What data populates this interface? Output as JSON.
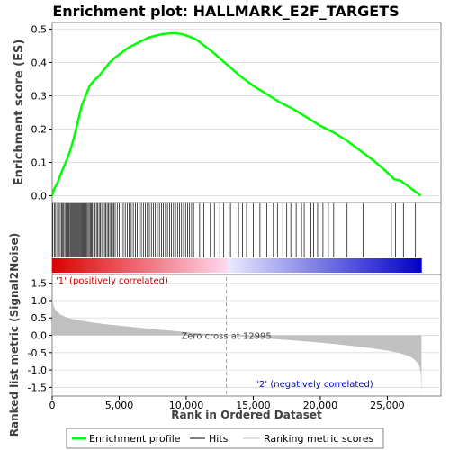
{
  "chart_data": {
    "type": "line",
    "title": "Enrichment plot: HALLMARK_E2F_TARGETS",
    "es_panel": {
      "ylabel": "Enrichment score (ES)",
      "ylim": [
        -0.02,
        0.52
      ],
      "yticks": [
        0.0,
        0.1,
        0.2,
        0.3,
        0.4,
        0.5
      ],
      "ytick_labels": [
        "0.0",
        "0.1",
        "0.2",
        "0.3",
        "0.4",
        "0.5"
      ],
      "series": [
        {
          "name": "Enrichment profile",
          "color": "#00ff00",
          "x": [
            0,
            150,
            400,
            700,
            1000,
            1300,
            1600,
            1900,
            2200,
            2500,
            2800,
            3100,
            3500,
            3900,
            4300,
            4700,
            5200,
            5700,
            6200,
            6700,
            7200,
            7700,
            8200,
            8700,
            9200,
            9700,
            10200,
            10700,
            12000,
            13000,
            14000,
            15000,
            16000,
            17000,
            18000,
            19000,
            20000,
            21000,
            22000,
            23000,
            24000,
            25000,
            25500,
            26000,
            26500,
            27000,
            27500
          ],
          "y": [
            0.0,
            0.02,
            0.04,
            0.07,
            0.1,
            0.13,
            0.17,
            0.22,
            0.27,
            0.3,
            0.33,
            0.345,
            0.36,
            0.38,
            0.4,
            0.415,
            0.43,
            0.445,
            0.455,
            0.465,
            0.475,
            0.48,
            0.485,
            0.487,
            0.488,
            0.485,
            0.478,
            0.47,
            0.43,
            0.395,
            0.36,
            0.33,
            0.305,
            0.28,
            0.26,
            0.235,
            0.21,
            0.19,
            0.165,
            0.135,
            0.105,
            0.07,
            0.05,
            0.045,
            0.03,
            0.015,
            0.0
          ]
        }
      ]
    },
    "hits_panel": {
      "hit_positions": [
        50,
        180,
        260,
        400,
        480,
        600,
        700,
        790,
        860,
        950,
        1030,
        1100,
        1180,
        1250,
        1330,
        1400,
        1470,
        1540,
        1610,
        1680,
        1750,
        1820,
        1890,
        1960,
        2030,
        2100,
        2170,
        2240,
        2310,
        2380,
        2450,
        2520,
        2600,
        2680,
        2760,
        2840,
        2920,
        3000,
        3100,
        3200,
        3300,
        3400,
        3500,
        3600,
        3700,
        3800,
        3900,
        4000,
        4100,
        4200,
        4300,
        4400,
        4500,
        4600,
        4700,
        4850,
        5000,
        5150,
        5300,
        5450,
        5600,
        5750,
        5900,
        6050,
        6200,
        6350,
        6500,
        6650,
        6800,
        6950,
        7100,
        7250,
        7400,
        7550,
        7700,
        7850,
        8000,
        8150,
        8300,
        8450,
        8600,
        8750,
        8900,
        9050,
        9200,
        9350,
        9500,
        9650,
        9800,
        9950,
        10100,
        10250,
        10400,
        10550,
        11000,
        11300,
        11800,
        12100,
        12500,
        12800,
        13300,
        13900,
        14200,
        14500,
        15000,
        15500,
        16000,
        16500,
        16800,
        17200,
        17500,
        17800,
        18200,
        18600,
        18800,
        19300,
        19500,
        19800,
        20200,
        20600,
        21000,
        22000,
        23200,
        25300,
        25600,
        26200,
        27100
      ]
    },
    "metric_panel": {
      "ylabel": "Ranked list metric (Signal2Noise)",
      "xlabel": "Rank in Ordered Dataset",
      "ylim": [
        -1.75,
        1.75
      ],
      "yticks": [
        -1.5,
        -1.0,
        -0.5,
        0.0,
        0.5,
        1.0,
        1.5
      ],
      "ytick_labels": [
        "-1.5",
        "-1.0",
        "-0.5",
        "0.0",
        "0.5",
        "1.0",
        "1.5"
      ],
      "xlim": [
        0,
        29000
      ],
      "xticks": [
        0,
        5000,
        10000,
        15000,
        20000,
        25000
      ],
      "xtick_labels": [
        "0",
        "5,000",
        "10,000",
        "15,000",
        "20,000",
        "25,000"
      ],
      "metric_x": [
        0,
        50,
        150,
        300,
        600,
        1000,
        1500,
        2000,
        3000,
        4000,
        5000,
        6000,
        7000,
        8000,
        9000,
        10000,
        11000,
        12000,
        12995,
        14000,
        15000,
        16000,
        17000,
        18000,
        19000,
        20000,
        21000,
        22000,
        23000,
        24000,
        25000,
        25800,
        26400,
        26900,
        27200,
        27400,
        27500,
        27550
      ],
      "metric_y": [
        1.05,
        0.95,
        0.8,
        0.7,
        0.6,
        0.53,
        0.47,
        0.43,
        0.37,
        0.32,
        0.28,
        0.24,
        0.2,
        0.16,
        0.13,
        0.09,
        0.06,
        0.03,
        0.0,
        -0.03,
        -0.06,
        -0.09,
        -0.12,
        -0.15,
        -0.18,
        -0.21,
        -0.25,
        -0.29,
        -0.33,
        -0.38,
        -0.44,
        -0.5,
        -0.57,
        -0.66,
        -0.77,
        -0.9,
        -1.1,
        -1.7
      ],
      "zero_cross_rank": 12995,
      "zero_cross_label": "Zero cross at 12995",
      "pos_label": "'1' (positively correlated)",
      "neg_label": "'2' (negatively correlated)",
      "pos_color": "#cc0000",
      "neg_color": "#0000cc",
      "dataset_size": 27550
    },
    "legend": {
      "placement": "bottom",
      "items": [
        {
          "label": "Enrichment profile",
          "color": "#00ff00",
          "style": "thick"
        },
        {
          "label": "Hits",
          "color": "#000000",
          "style": "thin"
        },
        {
          "label": "Ranking metric scores",
          "color": "#c0c0c0",
          "style": "thin"
        }
      ]
    },
    "colors": {
      "es_line": "#00ff00",
      "metric_fill": "#c0c0c0",
      "grid": "#e0e0e0"
    }
  }
}
